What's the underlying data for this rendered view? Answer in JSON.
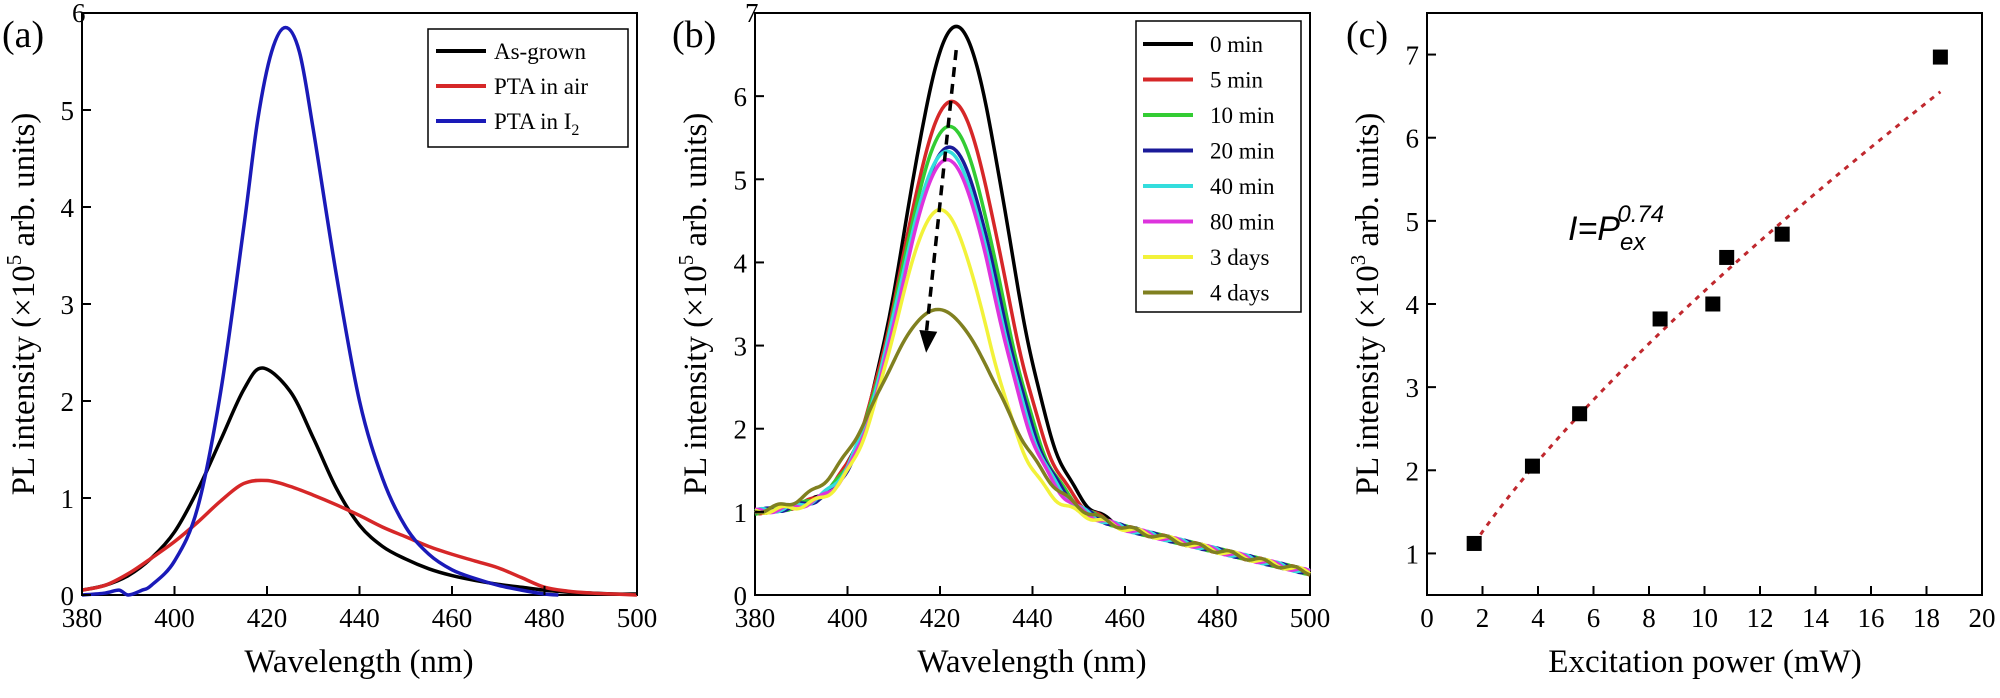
{
  "chart_data": [
    {
      "type": "line",
      "panel_label": "(a)",
      "xlabel": "Wavelength (nm)",
      "ylabel_prefix": "PL intensity (×10",
      "ylabel_sup": "5",
      "ylabel_suffix": " arb. units)",
      "xlim": [
        380,
        500
      ],
      "ylim": [
        0,
        6
      ],
      "xticks": [
        "380",
        "400",
        "420",
        "440",
        "460",
        "480",
        "500"
      ],
      "yticks": [
        "0",
        "1",
        "2",
        "3",
        "4",
        "5",
        "6"
      ],
      "legend_position": "top-right",
      "series": [
        {
          "name": "As-grown",
          "color": "#000000",
          "x": [
            380,
            385,
            390,
            395,
            400,
            405,
            410,
            415,
            419,
            425,
            430,
            435,
            440,
            445,
            450,
            455,
            460,
            465,
            470,
            475,
            480,
            485,
            490,
            495,
            500
          ],
          "y": [
            0.05,
            0.1,
            0.2,
            0.38,
            0.65,
            1.08,
            1.6,
            2.12,
            2.34,
            2.1,
            1.62,
            1.1,
            0.72,
            0.5,
            0.37,
            0.27,
            0.2,
            0.15,
            0.11,
            0.08,
            0.05,
            0.03,
            0.02,
            0.01,
            0.01
          ]
        },
        {
          "name": "PTA in air",
          "color": "#d62728",
          "x": [
            380,
            385,
            390,
            395,
            400,
            405,
            410,
            415,
            420,
            425,
            430,
            435,
            440,
            445,
            450,
            455,
            460,
            465,
            470,
            475,
            480,
            485,
            490,
            495,
            500
          ],
          "y": [
            0.05,
            0.1,
            0.22,
            0.38,
            0.55,
            0.75,
            0.97,
            1.15,
            1.18,
            1.12,
            1.03,
            0.93,
            0.82,
            0.7,
            0.6,
            0.5,
            0.42,
            0.35,
            0.28,
            0.18,
            0.08,
            0.04,
            0.02,
            0.01,
            0.0
          ]
        },
        {
          "name": "PTA in I",
          "name_sub": "2",
          "color": "#1a1ab8",
          "x": [
            380,
            385,
            388,
            390,
            393,
            395,
            400,
            405,
            410,
            415,
            418,
            421,
            424,
            427,
            430,
            435,
            440,
            445,
            450,
            455,
            460,
            465,
            470,
            475,
            480,
            483
          ],
          "y": [
            0.0,
            0.02,
            0.05,
            0.0,
            0.05,
            0.1,
            0.35,
            0.9,
            2.1,
            3.8,
            4.9,
            5.6,
            5.85,
            5.6,
            4.8,
            3.3,
            2.0,
            1.2,
            0.7,
            0.42,
            0.26,
            0.17,
            0.1,
            0.05,
            0.01,
            0.0
          ]
        }
      ]
    },
    {
      "type": "line",
      "panel_label": "(b)",
      "xlabel": "Wavelength (nm)",
      "ylabel_prefix": "PL intensity (×10",
      "ylabel_sup": "5",
      "ylabel_suffix": " arb. units)",
      "xlim": [
        380,
        500
      ],
      "ylim": [
        0,
        7
      ],
      "xticks": [
        "380",
        "400",
        "420",
        "440",
        "460",
        "480",
        "500"
      ],
      "yticks": [
        "0",
        "1",
        "2",
        "3",
        "4",
        "5",
        "6",
        "7"
      ],
      "legend_position": "top-right",
      "annotation": "dashed arrow indicating decreasing peak intensity with time",
      "series": [
        {
          "name": "0 min",
          "color": "#000000",
          "peak": 6.65,
          "center": 423.5,
          "width": 10.5
        },
        {
          "name": "5 min",
          "color": "#d62728",
          "peak": 5.75,
          "center": 422.5,
          "width": 10.5
        },
        {
          "name": "10 min",
          "color": "#33cc33",
          "peak": 5.45,
          "center": 422,
          "width": 10.3
        },
        {
          "name": "20 min",
          "color": "#1a1a99",
          "peak": 5.2,
          "center": 422,
          "width": 10.2
        },
        {
          "name": "40 min",
          "color": "#33dddd",
          "peak": 5.15,
          "center": 421.5,
          "width": 10.2
        },
        {
          "name": "80 min",
          "color": "#dd33dd",
          "peak": 5.05,
          "center": 421.5,
          "width": 10.0
        },
        {
          "name": "3 days",
          "color": "#f2f23a",
          "peak": 4.45,
          "center": 420,
          "width": 9.5
        },
        {
          "name": "4 days",
          "color": "#808020",
          "peak": 3.25,
          "center": 419.5,
          "width": 12.0
        }
      ],
      "baseline": {
        "x": [
          380,
          400,
          430,
          460,
          500
        ],
        "y": [
          1.0,
          1.1,
          1.3,
          0.8,
          0.27
        ]
      }
    },
    {
      "type": "scatter",
      "panel_label": "(c)",
      "xlabel": "Excitation power (mW)",
      "ylabel_prefix": "PL  intensity (×10",
      "ylabel_sup": "3",
      "ylabel_suffix": " arb. units)",
      "xlim": [
        0,
        20
      ],
      "ylim": [
        0.5,
        7.5
      ],
      "xticks": [
        "0",
        "2",
        "4",
        "6",
        "8",
        "10",
        "12",
        "14",
        "16",
        "18",
        "20"
      ],
      "yticks": [
        "1",
        "2",
        "3",
        "4",
        "5",
        "6",
        "7"
      ],
      "annotation_main": "I=P",
      "annotation_sub": "ex",
      "annotation_sup": "0.74",
      "marker_color": "#000000",
      "fit_color": "#c0282e",
      "points": {
        "x": [
          1.7,
          3.8,
          5.5,
          8.4,
          10.3,
          10.8,
          12.8,
          18.5
        ],
        "y": [
          1.12,
          2.05,
          2.68,
          3.82,
          4.0,
          4.56,
          4.84,
          6.97
        ]
      },
      "fit": {
        "A": 0.74,
        "exponent": 0.74,
        "x_range": [
          1.7,
          18.5
        ]
      }
    }
  ]
}
